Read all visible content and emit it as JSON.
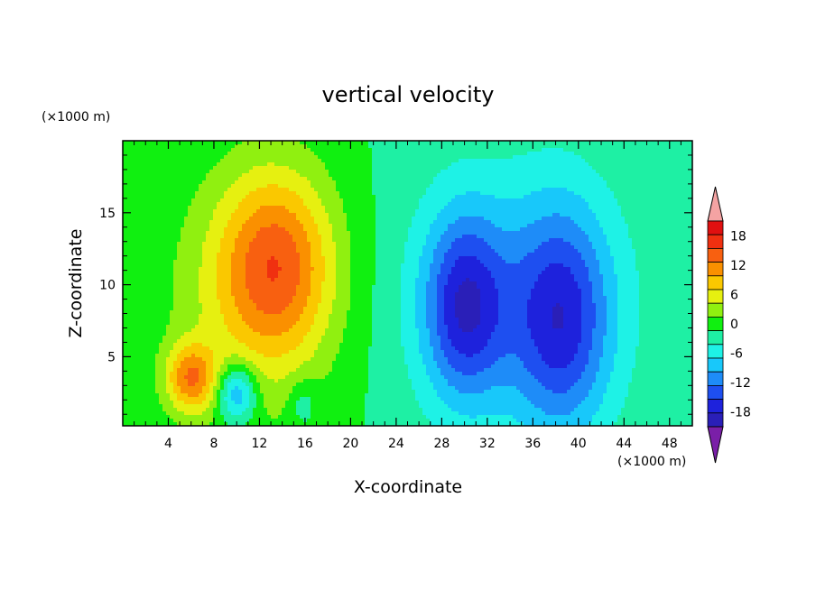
{
  "chart_data": {
    "type": "heatmap",
    "title": "vertical velocity",
    "xlabel": "X-coordinate",
    "ylabel": "Z-coordinate",
    "x_unit_label": "(×1000 m)",
    "y_unit_label": "(×1000 m)",
    "xlim": [
      0,
      50
    ],
    "ylim": [
      0.2,
      20
    ],
    "x_ticks": [
      4,
      8,
      12,
      16,
      20,
      24,
      28,
      32,
      36,
      40,
      44,
      48
    ],
    "y_ticks": [
      5,
      10,
      15
    ],
    "colorbar": {
      "levels": [
        -21,
        -18,
        -15,
        -12,
        -9,
        -6,
        -3,
        0,
        3,
        6,
        9,
        12,
        15,
        18,
        21
      ],
      "colors": [
        "#7a1fa8",
        "#2a1fb8",
        "#1e22dc",
        "#1e4ff0",
        "#1e8cf8",
        "#18c8fa",
        "#1ef2e6",
        "#1ef0a4",
        "#10f010",
        "#90f010",
        "#e6f010",
        "#fac800",
        "#fa9000",
        "#f86010",
        "#f03010",
        "#e01010",
        "#f4a3a3"
      ],
      "tick_labels": [
        "18",
        "12",
        "6",
        "0",
        "-6",
        "-12",
        "-18"
      ],
      "tick_values": [
        18,
        12,
        6,
        0,
        -6,
        -12,
        -18
      ]
    },
    "features": [
      {
        "x": 13.5,
        "z": 11.5,
        "value": 13,
        "sx": 3.5,
        "sz": 4.5
      },
      {
        "x": 11.5,
        "z": 9.0,
        "value": 6,
        "sx": 5.5,
        "sz": 6.5
      },
      {
        "x": 6.0,
        "z": 3.5,
        "value": 13,
        "sx": 1.6,
        "sz": 1.7
      },
      {
        "x": 10.0,
        "z": 2.5,
        "value": -12,
        "sx": 1.2,
        "sz": 1.4
      },
      {
        "x": 15.8,
        "z": 1.8,
        "value": -4,
        "sx": 0.9,
        "sz": 1.2
      },
      {
        "x": 30.0,
        "z": 8.5,
        "value": -14,
        "sx": 2.5,
        "sz": 4.5
      },
      {
        "x": 38.5,
        "z": 7.5,
        "value": -13,
        "sx": 3.0,
        "sz": 5.5
      },
      {
        "x": 34.5,
        "z": 9.0,
        "value": -6,
        "sx": 7.5,
        "sz": 7.0
      }
    ]
  }
}
